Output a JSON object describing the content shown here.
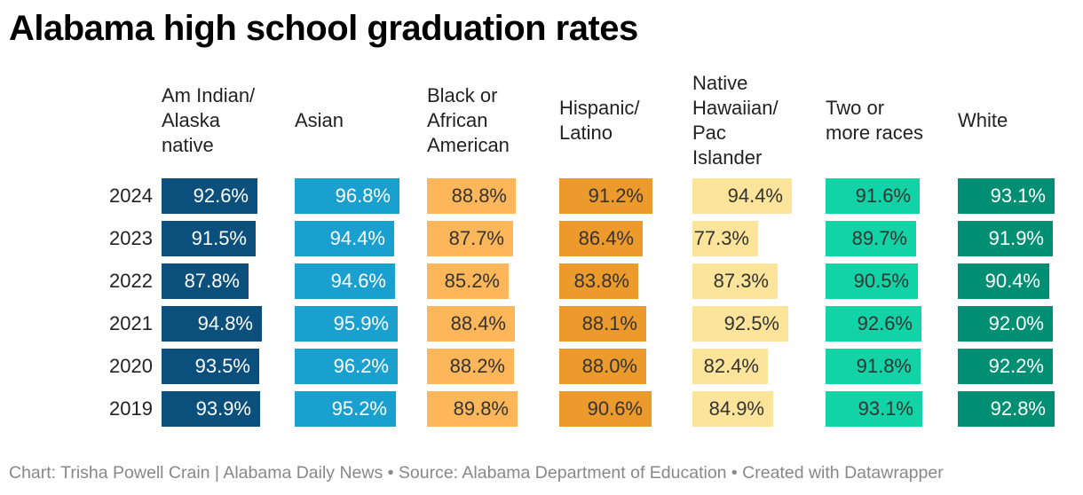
{
  "chart_data": {
    "type": "table",
    "title": "Alabama high school graduation rates",
    "columns": [
      {
        "label": "Am Indian/\nAlaska\nnative",
        "color": "#0b4f7c",
        "text_color": "#ffffff"
      },
      {
        "label": "Asian",
        "color": "#1aa0cf",
        "text_color": "#ffffff"
      },
      {
        "label": "Black or\nAfrican\nAmerican",
        "color": "#fdb75a",
        "text_color": "#333333"
      },
      {
        "label": "Hispanic/\nLatino",
        "color": "#ec9a2c",
        "text_color": "#333333"
      },
      {
        "label": "Native\nHawaiian/\nPac\nIslander",
        "color": "#fde49b",
        "text_color": "#333333"
      },
      {
        "label": "Two or\nmore races",
        "color": "#12d3a5",
        "text_color": "#333333"
      },
      {
        "label": "White",
        "color": "#008f73",
        "text_color": "#ffffff"
      }
    ],
    "years": [
      "2024",
      "2023",
      "2022",
      "2021",
      "2020",
      "2019"
    ],
    "values": [
      [
        92.6,
        96.8,
        88.8,
        91.2,
        94.4,
        91.6,
        93.1
      ],
      [
        91.5,
        94.4,
        87.7,
        86.4,
        77.3,
        89.7,
        91.9
      ],
      [
        87.8,
        94.6,
        85.2,
        83.8,
        87.3,
        90.5,
        90.4
      ],
      [
        94.8,
        95.9,
        88.4,
        88.1,
        92.5,
        92.6,
        92.0
      ],
      [
        93.5,
        96.2,
        88.2,
        88.0,
        82.4,
        91.8,
        92.2
      ],
      [
        93.9,
        95.2,
        89.8,
        90.6,
        84.9,
        93.1,
        92.8
      ]
    ],
    "value_suffix": "%",
    "bar_scale_max": 100
  },
  "footer": {
    "text": "Chart: Trisha Powell Crain | Alabama Daily News • Source: Alabama Department of Education • Created with Datawrapper"
  }
}
